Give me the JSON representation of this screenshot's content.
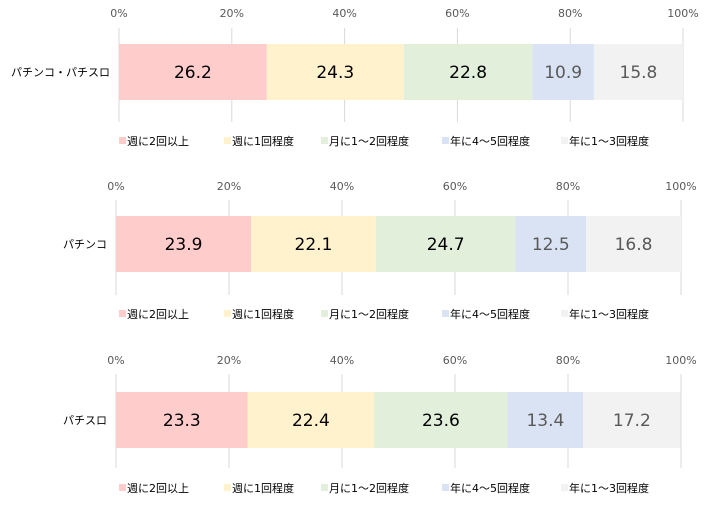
{
  "chart_data": [
    {
      "type": "bar",
      "orientation": "horizontal",
      "stacked": true,
      "categories": [
        "パチンコ・パチスロ"
      ],
      "series": [
        {
          "name": "週に2回以上",
          "values": [
            26.2
          ]
        },
        {
          "name": "週に1回程度",
          "values": [
            24.3
          ]
        },
        {
          "name": "月に1～2回程度",
          "values": [
            22.8
          ]
        },
        {
          "name": "年に4～5回程度",
          "values": [
            10.9
          ]
        },
        {
          "name": "年に1～3回程度",
          "values": [
            15.8
          ]
        }
      ],
      "xlim": [
        0,
        100
      ],
      "xticks": [
        "0%",
        "20%",
        "40%",
        "60%",
        "80%",
        "100%"
      ],
      "grid": true,
      "legend": "bottom"
    },
    {
      "type": "bar",
      "orientation": "horizontal",
      "stacked": true,
      "categories": [
        "パチンコ"
      ],
      "series": [
        {
          "name": "週に2回以上",
          "values": [
            23.9
          ]
        },
        {
          "name": "週に1回程度",
          "values": [
            22.1
          ]
        },
        {
          "name": "月に1～2回程度",
          "values": [
            24.7
          ]
        },
        {
          "name": "年に4～5回程度",
          "values": [
            12.5
          ]
        },
        {
          "name": "年に1～3回程度",
          "values": [
            16.8
          ]
        }
      ],
      "xlim": [
        0,
        100
      ],
      "xticks": [
        "0%",
        "20%",
        "40%",
        "60%",
        "80%",
        "100%"
      ],
      "grid": true,
      "legend": "bottom"
    },
    {
      "type": "bar",
      "orientation": "horizontal",
      "stacked": true,
      "categories": [
        "パチスロ"
      ],
      "series": [
        {
          "name": "週に2回以上",
          "values": [
            23.3
          ]
        },
        {
          "name": "週に1回程度",
          "values": [
            22.4
          ]
        },
        {
          "name": "月に1～2回程度",
          "values": [
            23.6
          ]
        },
        {
          "name": "年に4～5回程度",
          "values": [
            13.4
          ]
        },
        {
          "name": "年に1～3回程度",
          "values": [
            17.2
          ]
        }
      ],
      "xlim": [
        0,
        100
      ],
      "xticks": [
        "0%",
        "20%",
        "40%",
        "60%",
        "80%",
        "100%"
      ],
      "grid": true,
      "legend": "bottom"
    }
  ],
  "colors": [
    "#ffcccc",
    "#fff2cc",
    "#e2efda",
    "#dae3f3",
    "#f2f2f2"
  ],
  "label_colors": [
    "#000000",
    "#000000",
    "#000000",
    "#595959",
    "#595959"
  ]
}
